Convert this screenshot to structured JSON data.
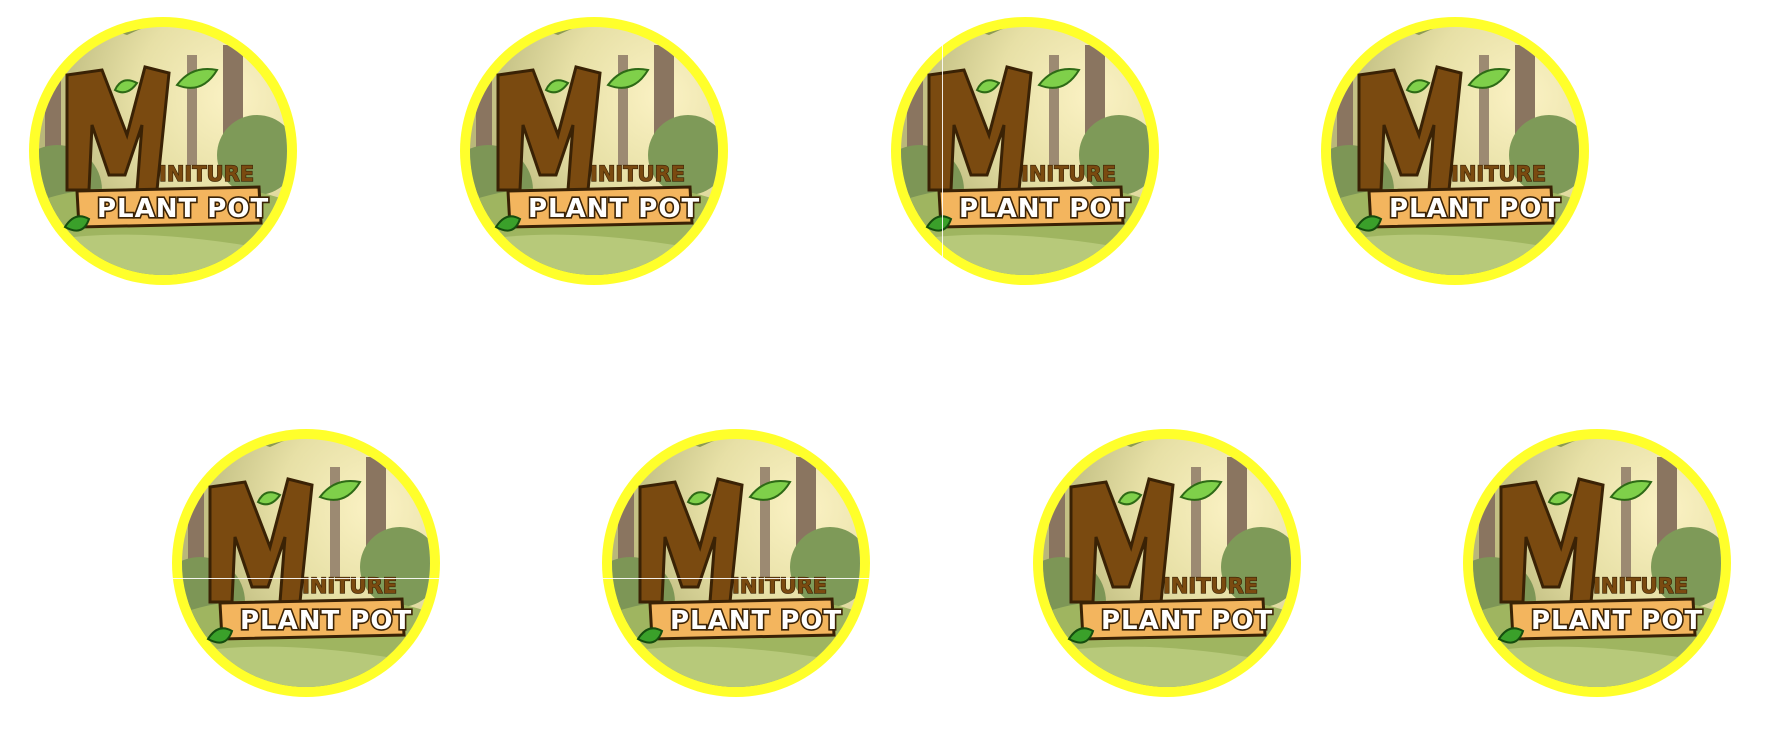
{
  "logo": {
    "letter_big": "M",
    "word_small": "INITURE",
    "sign_text": "PLANT POT"
  },
  "colors": {
    "ring": "#ffff2b",
    "wood": "#7a4a10",
    "sign": "#f3b55e"
  },
  "sticker_count": 8
}
